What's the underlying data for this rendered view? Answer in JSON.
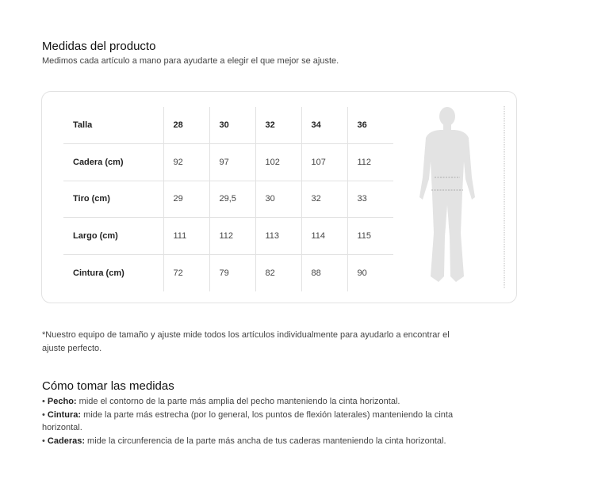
{
  "header": {
    "title": "Medidas del producto",
    "subtitle": "Medimos cada artículo a mano para ayudarte a elegir el que mejor se ajuste."
  },
  "table": {
    "rows": [
      {
        "label": "Talla",
        "values": [
          "28",
          "30",
          "32",
          "34",
          "36"
        ]
      },
      {
        "label": "Cadera (cm)",
        "values": [
          "92",
          "97",
          "102",
          "107",
          "112"
        ]
      },
      {
        "label": "Tiro (cm)",
        "values": [
          "29",
          "29,5",
          "30",
          "32",
          "33"
        ]
      },
      {
        "label": "Largo (cm)",
        "values": [
          "111",
          "112",
          "113",
          "114",
          "115"
        ]
      },
      {
        "label": "Cintura (cm)",
        "values": [
          "72",
          "79",
          "82",
          "88",
          "90"
        ]
      }
    ]
  },
  "figure": {
    "icon": "body-silhouette-icon",
    "fill": "#e3e3e3"
  },
  "note": "*Nuestro equipo de tamaño y ajuste mide todos los artículos individualmente para ayudarlo a encontrar el ajuste perfecto.",
  "howto": {
    "title": "Cómo tomar las medidas",
    "items": [
      {
        "term": "Pecho:",
        "text": " mide el contorno de la parte más amplia del pecho manteniendo la cinta horizontal."
      },
      {
        "term": "Cintura:",
        "text": " mide la parte más estrecha (por lo general, los puntos de flexión laterales) manteniendo la cinta horizontal."
      },
      {
        "term": "Caderas:",
        "text": " mide la circunferencia de la parte más ancha de tus caderas manteniendo la cinta horizontal."
      }
    ]
  }
}
